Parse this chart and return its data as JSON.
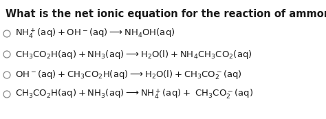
{
  "title": "What is the net ionic equation for the reaction of ammonia and acetic acid ?",
  "background_color": "#ffffff",
  "title_fontsize": 10.5,
  "options_plain": [
    [
      "NH",
      "4",
      "+",
      "(aq)+OH",
      "⁻",
      "(aq)—→NH",
      "4",
      "OH(aq)"
    ],
    [
      "CH",
      "3",
      "CO",
      "2",
      "H(aq)+NH",
      "3",
      "(aq)—→H",
      "2",
      "O(l)+NH",
      "4",
      "CH",
      "3",
      "CO",
      "2",
      "(aq)"
    ],
    [
      "OH",
      "⁻",
      "(aq)+CH",
      "3",
      "CO",
      "2",
      "H(aq)—→H",
      "2",
      "O(l)+CH",
      "3",
      "CO",
      "2",
      "⁻",
      "(aq)"
    ],
    [
      "CH",
      "3",
      "CO",
      "2",
      "H(aq)+NH",
      "3",
      "(aq)—→NH",
      "4",
      "+",
      "(aq)+ CH",
      "3",
      "CO",
      "2",
      "⁻",
      "(aq)"
    ]
  ],
  "text_color": "#1a1a1a",
  "option_fontsize": 9.5,
  "circle_color": "#888888"
}
